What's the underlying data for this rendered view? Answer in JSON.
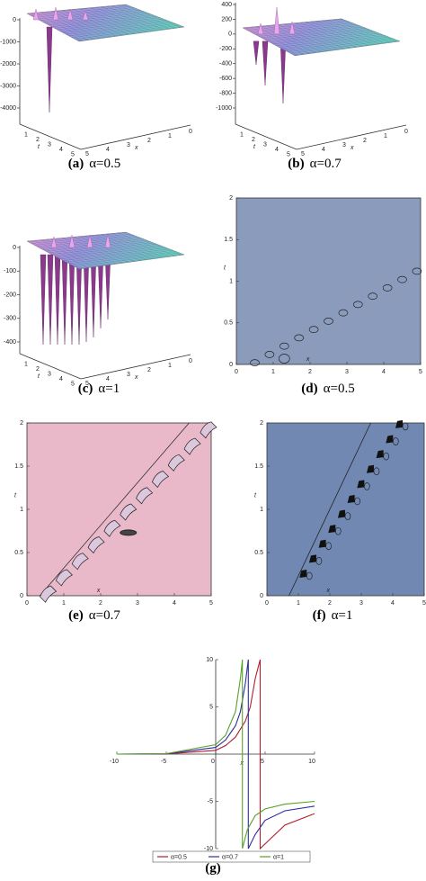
{
  "chart_data": [
    {
      "type": "surface3d",
      "label": "(a)",
      "caption": "α=0.5",
      "zlim": [
        -4000,
        0
      ],
      "zticks": [
        0,
        -1000,
        -2000,
        -3000,
        -4000
      ],
      "tticks": [
        1,
        2,
        3,
        4,
        5
      ],
      "xticks": [
        0,
        1,
        2,
        3,
        4,
        5
      ],
      "tlabel": "t",
      "xlabel": "x"
    },
    {
      "type": "surface3d",
      "label": "(b)",
      "caption": "α=0.7",
      "zlim": [
        -1000,
        400
      ],
      "zticks": [
        400,
        200,
        0,
        -200,
        -400,
        -600,
        -800,
        -1000
      ],
      "tticks": [
        1,
        2,
        3,
        4,
        5
      ],
      "xticks": [
        0,
        1,
        2,
        3,
        4,
        5
      ],
      "tlabel": "t",
      "xlabel": "x"
    },
    {
      "type": "surface3d",
      "label": "(c)",
      "caption": "α=1",
      "zlim": [
        -400,
        0
      ],
      "zticks": [
        0,
        -100,
        -200,
        -300,
        -400
      ],
      "tticks": [
        1,
        2,
        3,
        4,
        5
      ],
      "xticks": [
        0,
        1,
        2,
        3,
        4,
        5
      ],
      "tlabel": "t",
      "xlabel": "x"
    },
    {
      "type": "contour",
      "label": "(d)",
      "caption": "α=0.5",
      "xlim": [
        0,
        5
      ],
      "ylim": [
        0,
        2
      ],
      "xticks": [
        0,
        1,
        2,
        3,
        4,
        5
      ],
      "yticks": [
        0,
        0.5,
        1,
        1.5,
        2
      ],
      "xlabel": "x",
      "ylabel": "t",
      "background": "#8a9bbb"
    },
    {
      "type": "contour",
      "label": "(e)",
      "caption": "α=0.7",
      "xlim": [
        0,
        5
      ],
      "ylim": [
        0,
        2
      ],
      "xticks": [
        0,
        1,
        2,
        3,
        4,
        5
      ],
      "yticks": [
        0,
        0.5,
        1,
        1.5,
        2
      ],
      "xlabel": "x",
      "ylabel": "t",
      "background": "#e9b9c9"
    },
    {
      "type": "contour",
      "label": "(f)",
      "caption": "α=1",
      "xlim": [
        0,
        5
      ],
      "ylim": [
        0,
        2
      ],
      "xticks": [
        0,
        1,
        2,
        3,
        4,
        5
      ],
      "yticks": [
        0,
        0.5,
        1,
        1.5,
        2
      ],
      "xlabel": "x",
      "ylabel": "t",
      "background": "#7189b2"
    },
    {
      "type": "line",
      "label": "(g)",
      "xlim": [
        -10,
        10
      ],
      "ylim": [
        -10,
        10
      ],
      "xticks": [
        -10,
        -5,
        0,
        5,
        10
      ],
      "yticks": [
        -10,
        -5,
        5,
        10
      ],
      "xlabel": "x",
      "series": [
        {
          "name": "α=0.5",
          "color": "#b01e2e",
          "x": [
            -10,
            -5,
            0,
            1,
            2,
            3,
            3.5,
            4,
            4.5,
            4.5,
            5.5,
            7,
            10
          ],
          "values": [
            0,
            0.02,
            0.4,
            0.9,
            1.8,
            3.5,
            5,
            8,
            10,
            -10,
            -9,
            -7.5,
            -6.3
          ]
        },
        {
          "name": "α=0.7",
          "color": "#2a2ea0",
          "x": [
            -10,
            -5,
            0,
            1,
            2,
            2.5,
            3,
            3.3,
            3.3,
            4,
            5,
            7,
            10
          ],
          "values": [
            0,
            0.03,
            0.7,
            1.5,
            3,
            4.5,
            7.5,
            10,
            -10,
            -8.5,
            -7,
            -6,
            -5.5
          ]
        },
        {
          "name": "α=1",
          "color": "#5aa02a",
          "x": [
            -10,
            -5,
            0,
            1,
            2,
            2.5,
            2.7,
            2.7,
            3.2,
            4,
            5,
            7,
            10
          ],
          "values": [
            0,
            0.05,
            1,
            2,
            4.5,
            8,
            10,
            -10,
            -8,
            -6.5,
            -5.8,
            -5.3,
            -5
          ]
        }
      ]
    }
  ]
}
